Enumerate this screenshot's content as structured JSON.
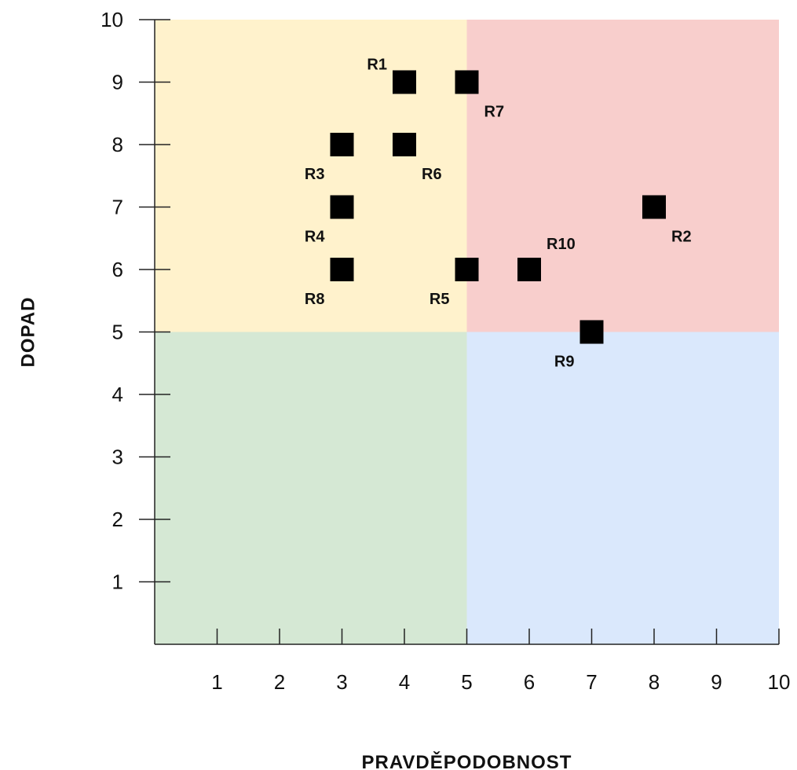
{
  "chart_data": {
    "type": "scatter",
    "xlabel": "PRAVDĚPODOBNOST",
    "ylabel": "DOPAD",
    "xlim": [
      0,
      10
    ],
    "ylim": [
      0,
      10
    ],
    "x_ticks": [
      "1",
      "2",
      "3",
      "4",
      "5",
      "6",
      "7",
      "8",
      "9",
      "10"
    ],
    "y_ticks": [
      "1",
      "2",
      "3",
      "4",
      "5",
      "6",
      "7",
      "8",
      "9",
      "10"
    ],
    "grid": false,
    "quadrants": [
      {
        "x": [
          0,
          5
        ],
        "y": [
          5,
          10
        ],
        "color": "#fff2cc"
      },
      {
        "x": [
          5,
          10
        ],
        "y": [
          5,
          10
        ],
        "color": "#f8cecc"
      },
      {
        "x": [
          0,
          5
        ],
        "y": [
          0,
          5
        ],
        "color": "#d5e8d4"
      },
      {
        "x": [
          5,
          10
        ],
        "y": [
          0,
          5
        ],
        "color": "#dae8fc"
      }
    ],
    "marker_color": "#000000",
    "points": [
      {
        "label": "R1",
        "x": 4,
        "y": 9,
        "label_pos": "top-left"
      },
      {
        "label": "R2",
        "x": 8,
        "y": 7,
        "label_pos": "bottom-right"
      },
      {
        "label": "R3",
        "x": 3,
        "y": 8,
        "label_pos": "bottom-left"
      },
      {
        "label": "R4",
        "x": 3,
        "y": 7,
        "label_pos": "bottom-left"
      },
      {
        "label": "R5",
        "x": 5,
        "y": 6,
        "label_pos": "bottom-left"
      },
      {
        "label": "R6",
        "x": 4,
        "y": 8,
        "label_pos": "bottom-right"
      },
      {
        "label": "R7",
        "x": 5,
        "y": 9,
        "label_pos": "bottom-right"
      },
      {
        "label": "R8",
        "x": 3,
        "y": 6,
        "label_pos": "bottom-left"
      },
      {
        "label": "R9",
        "x": 7,
        "y": 5,
        "label_pos": "bottom-left"
      },
      {
        "label": "R10",
        "x": 6,
        "y": 6,
        "label_pos": "top-right"
      }
    ]
  }
}
